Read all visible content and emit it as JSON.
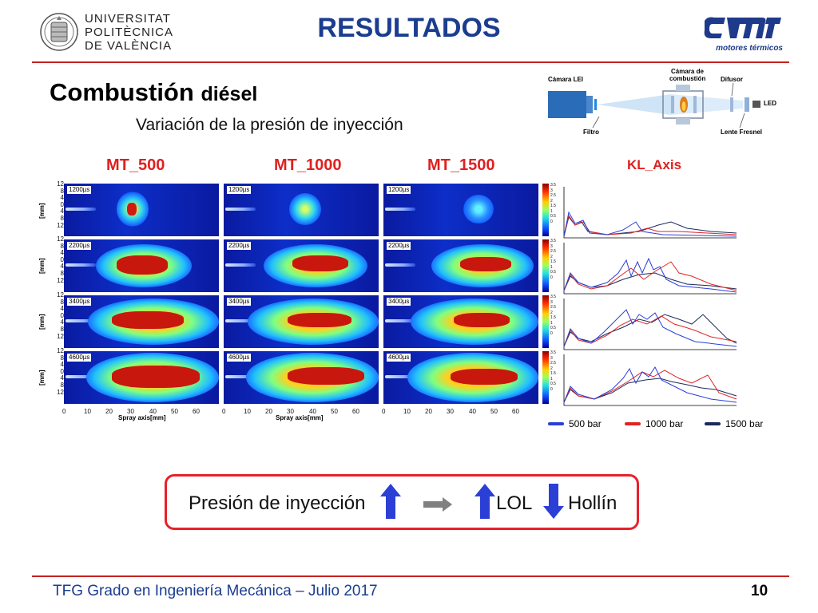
{
  "header": {
    "university_lines": [
      "UNIVERSITAT",
      "POLITÈCNICA",
      "DE VALÈNCIA"
    ],
    "title": "RESULTADOS",
    "logo_caption": "motores térmicos"
  },
  "slide": {
    "subtitle_main": "Combustión",
    "subtitle_small": "diésel",
    "section": "Variación de la presión de inyección"
  },
  "setup": {
    "camera": "Cámara LEI",
    "chamber": "Cámara de combustión",
    "diffuser": "Difusor",
    "led": "LED",
    "filter": "Filtro",
    "lens": "Lente Fresnel"
  },
  "columns": [
    "MT_500",
    "MT_1000",
    "MT_1500"
  ],
  "kl_label": "KL_Axis",
  "times": [
    "1200µs",
    "2200µs",
    "3400µs",
    "4600µs"
  ],
  "y_ticks": [
    "12",
    "8",
    "4",
    "0",
    "4",
    "8",
    "12"
  ],
  "y_label": "[mm]",
  "x_ticks": [
    "0",
    "10",
    "20",
    "30",
    "40",
    "50",
    "60"
  ],
  "x_label": "Spray axis[mm]",
  "colorbar_ticks": [
    "3.5",
    "3",
    "2.5",
    "2",
    "1.5",
    "1",
    "0.5",
    "0"
  ],
  "legend": [
    {
      "label": "500 bar",
      "color": "#2b3fd6"
    },
    {
      "label": "1000 bar",
      "color": "#e02424"
    },
    {
      "label": "1500 bar",
      "color": "#1b2a5a"
    }
  ],
  "result": {
    "pressure": "Presión de inyección",
    "lol": "LOL",
    "soot": "Hollín",
    "up_icon": "up-arrow-icon",
    "right_icon": "right-arrow-icon",
    "down_icon": "down-arrow-icon"
  },
  "footer": {
    "text": "TFG Grado en Ingeniería Mecánica – Julio 2017",
    "page": "10"
  }
}
